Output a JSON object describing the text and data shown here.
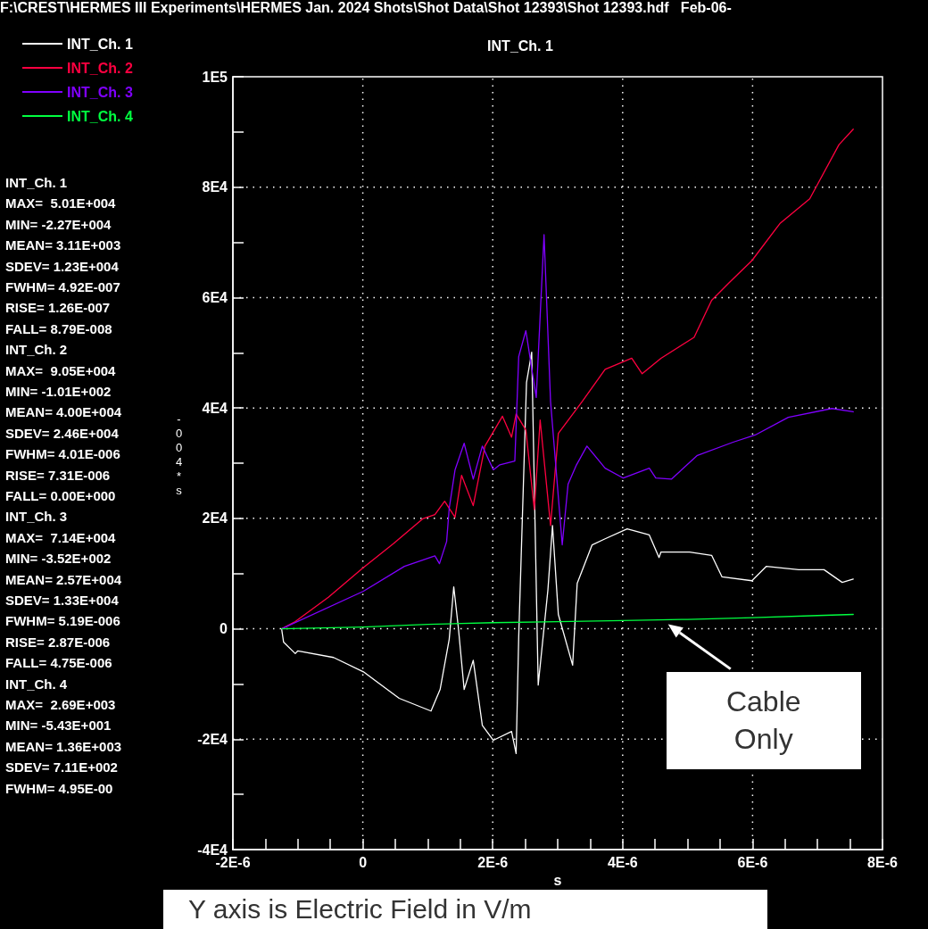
{
  "chart_data": {
    "type": "line",
    "title": "INT_Ch. 1",
    "xlabel": "s",
    "ylabel": "-004*s",
    "xlim": [
      -2e-06,
      8e-06
    ],
    "ylim": [
      -40000,
      100000
    ],
    "xticks": [
      {
        "value": -2e-06,
        "label": "-2E-6"
      },
      {
        "value": -1.5e-06,
        "label": null
      },
      {
        "value": -1e-06,
        "label": null
      },
      {
        "value": -5e-07,
        "label": null
      },
      {
        "value": 0,
        "label": "0"
      },
      {
        "value": 5e-07,
        "label": null
      },
      {
        "value": 1e-06,
        "label": null
      },
      {
        "value": 1.5e-06,
        "label": null
      },
      {
        "value": 2e-06,
        "label": "2E-6"
      },
      {
        "value": 2.5e-06,
        "label": null
      },
      {
        "value": 3e-06,
        "label": null
      },
      {
        "value": 3.5e-06,
        "label": null
      },
      {
        "value": 4e-06,
        "label": "4E-6"
      },
      {
        "value": 4.5e-06,
        "label": null
      },
      {
        "value": 5e-06,
        "label": null
      },
      {
        "value": 5.5e-06,
        "label": null
      },
      {
        "value": 6e-06,
        "label": "6E-6"
      },
      {
        "value": 6.5e-06,
        "label": null
      },
      {
        "value": 7e-06,
        "label": null
      },
      {
        "value": 7.5e-06,
        "label": null
      },
      {
        "value": 8e-06,
        "label": "8E-6"
      }
    ],
    "yticks": [
      {
        "value": -40000,
        "label": "-4E4"
      },
      {
        "value": -30000,
        "label": null
      },
      {
        "value": -20000,
        "label": "-2E4"
      },
      {
        "value": -10000,
        "label": null
      },
      {
        "value": 0,
        "label": "0"
      },
      {
        "value": 10000,
        "label": null
      },
      {
        "value": 20000,
        "label": "2E4"
      },
      {
        "value": 30000,
        "label": null
      },
      {
        "value": 40000,
        "label": "4E4"
      },
      {
        "value": 50000,
        "label": null
      },
      {
        "value": 60000,
        "label": "6E4"
      },
      {
        "value": 70000,
        "label": null
      },
      {
        "value": 80000,
        "label": "8E4"
      },
      {
        "value": 90000,
        "label": null
      },
      {
        "value": 100000,
        "label": "1E5"
      }
    ],
    "grid": true,
    "legend": "top left",
    "line_style": "solid",
    "series": [
      {
        "name": "INT_Ch. 1",
        "color": "#ffffff",
        "x": [
          -1.25e-06,
          -1.22e-06,
          -1.04e-06,
          -1e-06,
          -4.5e-07,
          1e-08,
          5.6e-07,
          1.05e-06,
          1.19e-06,
          1.33e-06,
          1.4e-06,
          1.47e-06,
          1.56e-06,
          1.7e-06,
          1.84e-06,
          2.01e-06,
          2.29e-06,
          2.36e-06,
          2.4e-06,
          2.52e-06,
          2.6e-06,
          2.7e-06,
          2.85e-06,
          2.92e-06,
          3.01e-06,
          3.23e-06,
          3.3e-06,
          3.53e-06,
          3.73e-06,
          4.07e-06,
          4.41e-06,
          4.56e-06,
          4.59e-06,
          5.03e-06,
          5.37e-06,
          5.53e-06,
          5.99e-06,
          6.21e-06,
          6.71e-06,
          7.1e-06,
          7.38e-06,
          7.55e-06
        ],
        "values": [
          0,
          -2400,
          -4500,
          -4000,
          -5200,
          -7800,
          -12600,
          -14900,
          -11000,
          -1900,
          7600,
          300,
          -11000,
          -5700,
          -17500,
          -20200,
          -18600,
          -22600,
          -1500,
          44600,
          50100,
          -10200,
          7100,
          18700,
          2600,
          -6600,
          8200,
          15200,
          16300,
          18100,
          17000,
          12900,
          13900,
          13900,
          13300,
          9400,
          8700,
          11300,
          10700,
          10700,
          8400,
          9000
        ]
      },
      {
        "name": "INT_Ch. 2",
        "color": "#ff0040",
        "x": [
          -1.25e-06,
          -1.04e-06,
          -5.3e-07,
          0,
          4.7e-07,
          9.2e-07,
          1.11e-06,
          1.26e-06,
          1.33e-06,
          1.42e-06,
          1.52e-06,
          1.7e-06,
          1.88e-06,
          2.15e-06,
          2.29e-06,
          2.36e-06,
          2.51e-06,
          2.64e-06,
          2.73e-06,
          2.89e-06,
          3.01e-06,
          3.38e-06,
          3.73e-06,
          4.14e-06,
          4.3e-06,
          4.59e-06,
          5.1e-06,
          5.37e-06,
          5.64e-06,
          5.99e-06,
          6.42e-06,
          6.88e-06,
          7.33e-06,
          7.55e-06
        ],
        "values": [
          0,
          1300,
          5700,
          11000,
          15400,
          19900,
          20700,
          23100,
          21800,
          20200,
          27800,
          22300,
          33100,
          38500,
          34700,
          38900,
          36000,
          21600,
          37800,
          18700,
          35400,
          41200,
          47000,
          49000,
          46200,
          49000,
          52800,
          59500,
          62700,
          66700,
          73400,
          77900,
          87700,
          90500
        ]
      },
      {
        "name": "INT_Ch. 3",
        "color": "#8000ff",
        "x": [
          -1.25e-06,
          1e-08,
          6.4e-07,
          1.11e-06,
          1.18e-06,
          1.29e-06,
          1.33e-06,
          1.42e-06,
          1.56e-06,
          1.7e-06,
          1.84e-06,
          2.01e-06,
          2.11e-06,
          2.34e-06,
          2.4e-06,
          2.51e-06,
          2.67e-06,
          2.79e-06,
          2.89e-06,
          3.07e-06,
          3.16e-06,
          3.29e-06,
          3.45e-06,
          3.73e-06,
          4.01e-06,
          4.41e-06,
          4.51e-06,
          4.75e-06,
          5.15e-06,
          5.7e-06,
          6.04e-06,
          6.55e-06,
          7.22e-06,
          7.55e-06
        ],
        "values": [
          0,
          6800,
          11300,
          13200,
          11800,
          15800,
          21800,
          28800,
          33600,
          27100,
          33100,
          28800,
          29700,
          30400,
          49300,
          54000,
          41900,
          71400,
          41200,
          15200,
          26200,
          29700,
          33100,
          29100,
          27300,
          29100,
          27300,
          27100,
          31400,
          33800,
          35100,
          38300,
          39900,
          39300
        ]
      },
      {
        "name": "INT_Ch. 4",
        "color": "#00ff40",
        "x": [
          -1.25e-06,
          0,
          1e-06,
          2e-06,
          3e-06,
          4e-06,
          5e-06,
          6e-06,
          7e-06,
          7.55e-06
        ],
        "values": [
          0,
          300,
          800,
          1100,
          1300,
          1500,
          1700,
          2000,
          2400,
          2600
        ]
      }
    ],
    "annotations": [
      "F:\\CREST\\HERMES III Experiments\\HERMES Jan. 2024 Shots\\Shot Data\\Shot 12393\\Shot 12393.hdf   Feb-06-",
      "INT_Ch. 1",
      "MAX=  5.01E+004",
      "MIN= -2.27E+004",
      "MEAN= 3.11E+003",
      "SDEV= 1.23E+004",
      "FWHM= 4.92E-007",
      "RISE= 1.26E-007",
      "FALL= 8.79E-008",
      "INT_Ch. 2",
      "MAX=  9.05E+004",
      "MIN= -1.01E+002",
      "MEAN= 4.00E+004",
      "SDEV= 2.46E+004",
      "FWHM= 4.01E-006",
      "RISE= 7.31E-006",
      "FALL= 0.00E+000",
      "INT_Ch. 3",
      "MAX=  7.14E+004",
      "MIN= -3.52E+002",
      "MEAN= 2.57E+004",
      "SDEV= 1.33E+004",
      "FWHM= 5.19E-006",
      "RISE= 2.87E-006",
      "FALL= 4.75E-006",
      "INT_Ch. 4",
      "MAX=  2.69E+003",
      "MIN= -5.43E+001",
      "MEAN= 1.36E+003",
      "SDEV= 7.11E+002",
      "FWHM= 4.95E-00",
      {
        "text": "Cable Only",
        "x": 4.7e-06,
        "y": 800
      },
      "Y axis is Electric Field in V/m"
    ]
  }
}
